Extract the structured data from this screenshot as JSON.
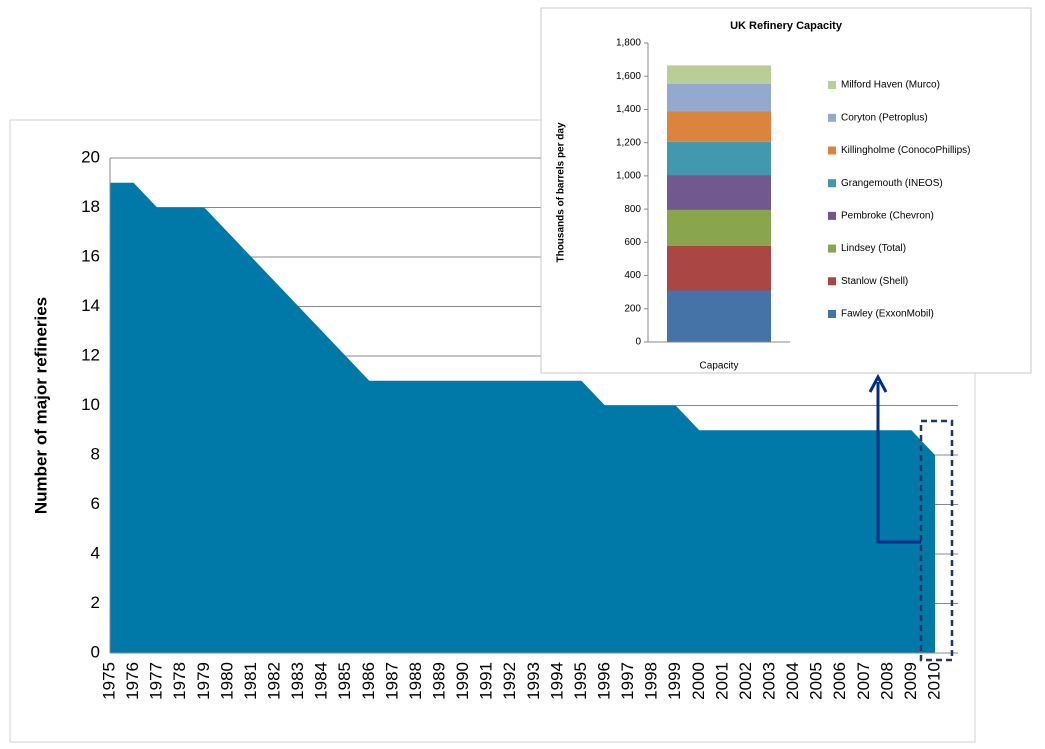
{
  "chart_data": [
    {
      "type": "area",
      "categories": [
        "1975",
        "1976",
        "1977",
        "1978",
        "1979",
        "1980",
        "1981",
        "1982",
        "1983",
        "1984",
        "1985",
        "1986",
        "1987",
        "1988",
        "1989",
        "1990",
        "1991",
        "1992",
        "1993",
        "1994",
        "1995",
        "1996",
        "1997",
        "1998",
        "1999",
        "2000",
        "2001",
        "2002",
        "2003",
        "2004",
        "2005",
        "2006",
        "2007",
        "2008",
        "2009",
        "2010"
      ],
      "values": [
        19,
        19,
        18,
        18,
        18,
        17,
        16,
        15,
        14,
        13,
        12,
        11,
        11,
        11,
        11,
        11,
        11,
        11,
        11,
        11,
        11,
        10,
        10,
        10,
        10,
        9,
        9,
        9,
        9,
        9,
        9,
        9,
        9,
        9,
        9,
        8
      ],
      "color": "#0079a8",
      "y_label": "Number of major refineries",
      "ylim": [
        0,
        20
      ],
      "yticks": [
        0,
        2,
        4,
        6,
        8,
        10,
        12,
        14,
        16,
        18,
        20
      ],
      "grid": true
    },
    {
      "type": "stacked_bar",
      "title": "UK Refinery Capacity",
      "y_label": "Thousands of barrels per day",
      "categories": [
        "Capacity"
      ],
      "series": [
        {
          "name": "Fawley  (ExxonMobil)",
          "color": "#4572a7",
          "values": [
            310
          ]
        },
        {
          "name": "Stanlow  (Shell)",
          "color": "#aa4643",
          "values": [
            270
          ]
        },
        {
          "name": "Lindsey (Total)",
          "color": "#89a54e",
          "values": [
            215
          ]
        },
        {
          "name": "Pembroke (Chevron)",
          "color": "#71588f",
          "values": [
            210
          ]
        },
        {
          "name": "Grangemouth  (INEOS)",
          "color": "#4198af",
          "values": [
            200
          ]
        },
        {
          "name": "Killingholme (ConocoPhillips)",
          "color": "#db843d",
          "values": [
            185
          ]
        },
        {
          "name": "Coryton  (Petroplus)",
          "color": "#93a9cf",
          "values": [
            165
          ]
        },
        {
          "name": "Milford Haven (Murco)",
          "color": "#b9cd96",
          "values": [
            110
          ]
        }
      ],
      "ylim": [
        0,
        1800
      ],
      "yticks": [
        0,
        200,
        400,
        600,
        800,
        {
          "value": 1000,
          "label": "1,000"
        },
        {
          "value": 1200,
          "label": "1,200"
        },
        {
          "value": 1400,
          "label": "1,400"
        },
        {
          "value": 1600,
          "label": "1,600"
        },
        {
          "value": 1800,
          "label": "1,800"
        }
      ],
      "grid": false
    }
  ]
}
